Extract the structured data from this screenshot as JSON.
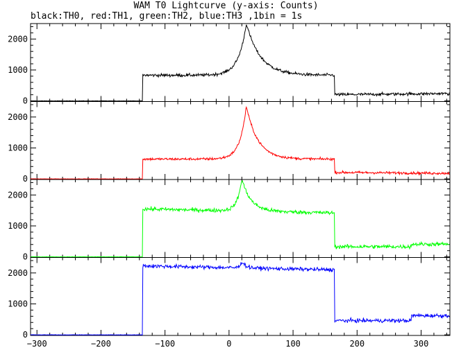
{
  "chart_data": {
    "type": "line",
    "title": "WAM T0 Lightcurve (y-axis: Counts)",
    "subtitle": "black:TH0, red:TH1, green:TH2, blue:TH3 ,1bin = 1s",
    "xlim": [
      -310,
      345
    ],
    "x_ticks": [
      -300,
      -200,
      -100,
      0,
      100,
      200,
      300
    ],
    "grid": false,
    "panels": [
      {
        "name": "TH0",
        "color": "#000000",
        "ylim": [
          -20,
          2500
        ],
        "y_ticks": [
          0,
          1000,
          2000
        ],
        "baseline": 0,
        "segments": [
          {
            "x": [
              -310,
              -135
            ],
            "level": 0
          },
          {
            "x": [
              -135,
              165
            ],
            "level": 830
          },
          {
            "x": [
              165,
              345
            ],
            "level": 200,
            "end_level": 240
          }
        ],
        "peak": {
          "x": 27,
          "y": 2500,
          "rise_width": 12,
          "fall_width": 22
        },
        "noise": 35
      },
      {
        "name": "TH1",
        "color": "#ff0000",
        "ylim": [
          -20,
          2500
        ],
        "y_ticks": [
          0,
          1000,
          2000
        ],
        "baseline": 0,
        "segments": [
          {
            "x": [
              -310,
              -135
            ],
            "level": 0
          },
          {
            "x": [
              -135,
              165
            ],
            "level": 640
          },
          {
            "x": [
              165,
              345
            ],
            "level": 210,
            "end_level": 180
          }
        ],
        "peak": {
          "x": 27,
          "y": 2350,
          "rise_width": 10,
          "fall_width": 18
        },
        "noise": 30
      },
      {
        "name": "TH2",
        "color": "#00ff00",
        "ylim": [
          -20,
          2500
        ],
        "y_ticks": [
          0,
          1000,
          2000
        ],
        "baseline": 0,
        "segments": [
          {
            "x": [
              -310,
              -135
            ],
            "level": 0
          },
          {
            "x": [
              -135,
              165
            ],
            "level": 1550,
            "end_level": 1420
          },
          {
            "x": [
              165,
              285
            ],
            "level": 330
          },
          {
            "x": [
              285,
              345
            ],
            "level": 410
          }
        ],
        "peak": {
          "x": 20,
          "y": 2520,
          "rise_width": 7,
          "fall_width": 14
        },
        "noise": 45
      },
      {
        "name": "TH3",
        "color": "#0000ff",
        "ylim": [
          -20,
          2500
        ],
        "y_ticks": [
          0,
          1000,
          2000
        ],
        "baseline": 0,
        "segments": [
          {
            "x": [
              -310,
              -135
            ],
            "level": 0
          },
          {
            "x": [
              -135,
              165
            ],
            "level": 2230,
            "end_level": 2100
          },
          {
            "x": [
              165,
              285
            ],
            "level": 460
          },
          {
            "x": [
              285,
              345
            ],
            "level": 620
          }
        ],
        "peak": {
          "x": 20,
          "y": 2380,
          "rise_width": 3,
          "fall_width": 6
        },
        "noise": 45
      }
    ]
  }
}
